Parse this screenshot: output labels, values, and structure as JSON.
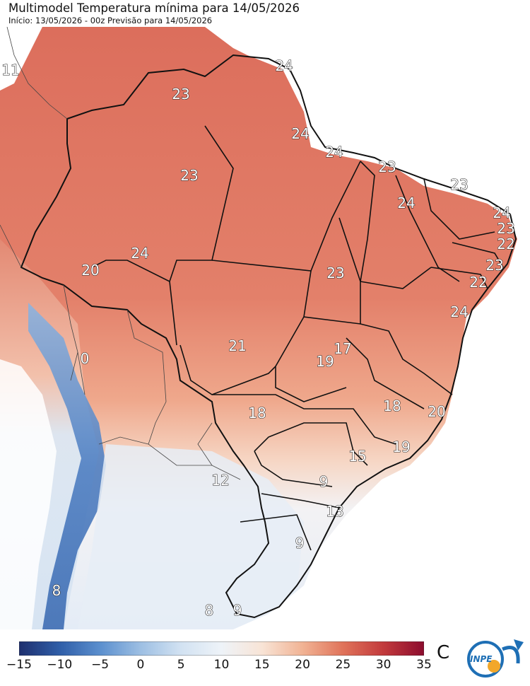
{
  "header": {
    "title": "Multimodel Temperatura mínima para 14/05/2026",
    "subtitle": "Início: 13/05/2026 - 00z  Previsão para 14/05/2026"
  },
  "map": {
    "labels": [
      {
        "text": "11",
        "tone": "warm"
      },
      {
        "text": "24",
        "tone": "warm"
      },
      {
        "text": "23",
        "tone": "warm"
      },
      {
        "text": "24",
        "tone": "warm"
      },
      {
        "text": "24",
        "tone": "warm"
      },
      {
        "text": "23",
        "tone": "warm"
      },
      {
        "text": "23",
        "tone": "warm"
      },
      {
        "text": "23",
        "tone": "warm"
      },
      {
        "text": "24",
        "tone": "warm"
      },
      {
        "text": "24",
        "tone": "warm"
      },
      {
        "text": "23",
        "tone": "warm"
      },
      {
        "text": "22",
        "tone": "warm"
      },
      {
        "text": "23",
        "tone": "warm"
      },
      {
        "text": "22",
        "tone": "warm"
      },
      {
        "text": "24",
        "tone": "warm"
      },
      {
        "text": "24",
        "tone": "warm"
      },
      {
        "text": "20",
        "tone": "warm"
      },
      {
        "text": "23",
        "tone": "warm"
      },
      {
        "text": "21",
        "tone": "warm"
      },
      {
        "text": "17",
        "tone": "warm"
      },
      {
        "text": "19",
        "tone": "warm"
      },
      {
        "text": "0",
        "tone": "cold"
      },
      {
        "text": "18",
        "tone": "warm"
      },
      {
        "text": "18",
        "tone": "warm"
      },
      {
        "text": "20",
        "tone": "warm"
      },
      {
        "text": "19",
        "tone": "warm"
      },
      {
        "text": "15",
        "tone": "warm"
      },
      {
        "text": "12",
        "tone": "cool"
      },
      {
        "text": "9",
        "tone": "cool"
      },
      {
        "text": "13",
        "tone": "cool"
      },
      {
        "text": "9",
        "tone": "cool"
      },
      {
        "text": "8",
        "tone": "cool"
      },
      {
        "text": "8",
        "tone": "cool"
      },
      {
        "text": "9",
        "tone": "cool"
      }
    ]
  },
  "colorbar": {
    "unit": "C",
    "min": -15,
    "max": 35,
    "ticks": [
      "−15",
      "−10",
      "−5",
      "0",
      "5",
      "10",
      "15",
      "20",
      "25",
      "30",
      "35"
    ],
    "tick_values": [
      -15,
      -10,
      -5,
      0,
      5,
      10,
      15,
      20,
      25,
      30,
      35
    ],
    "colors": [
      "#1e2f6e",
      "#2f5ea8",
      "#5b8fce",
      "#9dbfe3",
      "#d2e2f2",
      "#eef3f8",
      "#f8e4d6",
      "#f1b394",
      "#e0735a",
      "#c23a3c",
      "#8c0c2e"
    ]
  },
  "logo": {
    "text": "INPE",
    "colors": {
      "ring": "#1e6fb5",
      "sun": "#f2a72a"
    }
  },
  "colors": {
    "warm_land": "#e58a72",
    "hot_land": "#de7462",
    "mild_land": "#f2b79c",
    "cool_land": "#e8eef6",
    "cold_land": "#b9cfe8",
    "andes": "#4f7fc2",
    "border": "#222222"
  }
}
